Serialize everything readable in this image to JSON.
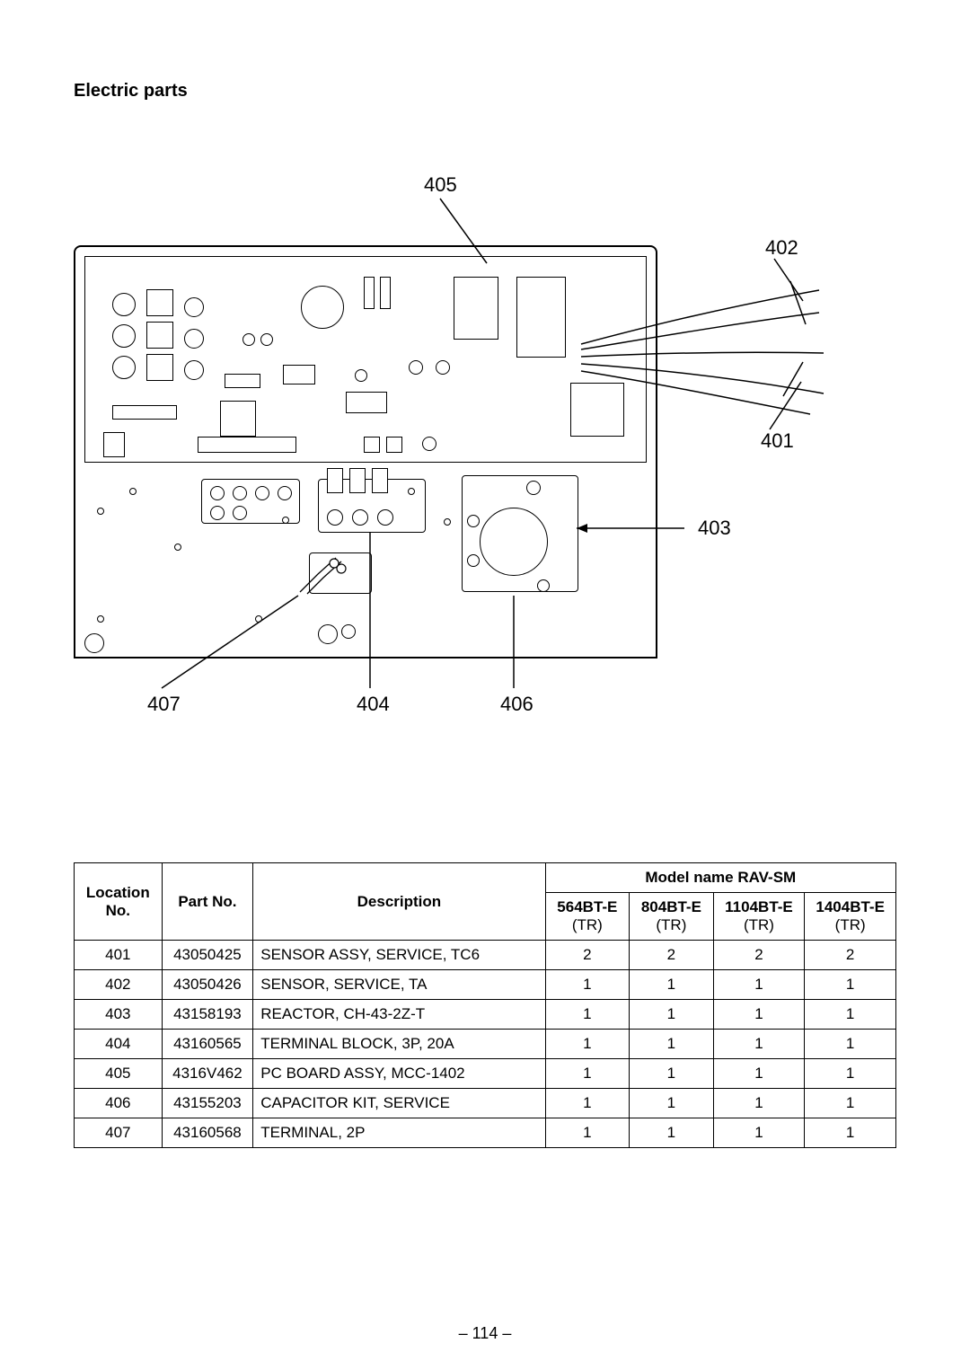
{
  "title": "Electric parts",
  "callouts": {
    "c401": "401",
    "c402": "402",
    "c403": "403",
    "c404": "404",
    "c405": "405",
    "c406": "406",
    "c407": "407"
  },
  "table": {
    "header_location": "Location No.",
    "header_partno": "Part No.",
    "header_desc": "Description",
    "header_model": "Model name   RAV-SM",
    "model_cols": [
      {
        "top": "564BT-E",
        "bottom": "(TR)"
      },
      {
        "top": "804BT-E",
        "bottom": "(TR)"
      },
      {
        "top": "1104BT-E",
        "bottom": "(TR)"
      },
      {
        "top": "1404BT-E",
        "bottom": "(TR)"
      }
    ],
    "rows": [
      {
        "loc": "401",
        "part": "43050425",
        "desc": "SENSOR ASSY, SERVICE, TC6",
        "q": [
          "2",
          "2",
          "2",
          "2"
        ]
      },
      {
        "loc": "402",
        "part": "43050426",
        "desc": "SENSOR, SERVICE, TA",
        "q": [
          "1",
          "1",
          "1",
          "1"
        ]
      },
      {
        "loc": "403",
        "part": "43158193",
        "desc": "REACTOR, CH-43-2Z-T",
        "q": [
          "1",
          "1",
          "1",
          "1"
        ]
      },
      {
        "loc": "404",
        "part": "43160565",
        "desc": "TERMINAL BLOCK, 3P, 20A",
        "q": [
          "1",
          "1",
          "1",
          "1"
        ]
      },
      {
        "loc": "405",
        "part": "4316V462",
        "desc": "PC BOARD ASSY, MCC-1402",
        "q": [
          "1",
          "1",
          "1",
          "1"
        ]
      },
      {
        "loc": "406",
        "part": "43155203",
        "desc": "CAPACITOR KIT, SERVICE",
        "q": [
          "1",
          "1",
          "1",
          "1"
        ]
      },
      {
        "loc": "407",
        "part": "43160568",
        "desc": "TERMINAL, 2P",
        "q": [
          "1",
          "1",
          "1",
          "1"
        ]
      }
    ]
  },
  "page_number": "– 114 –"
}
